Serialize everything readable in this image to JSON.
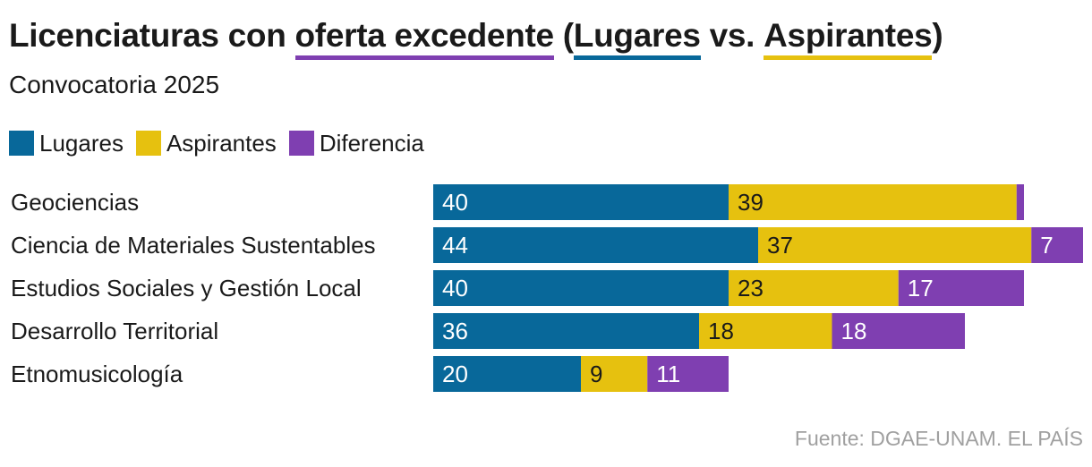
{
  "title": {
    "part1": "Licenciaturas con ",
    "part2": "oferta excedente",
    "part3": " (",
    "part4": "Lugares",
    "part5": " vs. ",
    "part6": "Aspirantes",
    "part7": ")"
  },
  "subtitle": "Convocatoria 2025",
  "legend": [
    {
      "label": "Lugares",
      "color": "#08689a"
    },
    {
      "label": "Aspirantes",
      "color": "#e6c10f"
    },
    {
      "label": "Diferencia",
      "color": "#7f3fb1"
    }
  ],
  "source": "Fuente: DGAE-UNAM. EL PAÍS",
  "chart_data": {
    "type": "bar",
    "orientation": "horizontal",
    "stacked": true,
    "categories": [
      "Geociencias",
      "Ciencia de Materiales Sustentables",
      "Estudios Sociales y Gestión Local",
      "Desarrollo Territorial",
      "Etnomusicología"
    ],
    "series": [
      {
        "name": "Lugares",
        "color": "#08689a",
        "label_color": "#ffffff",
        "values": [
          40,
          44,
          40,
          36,
          20
        ],
        "labels": [
          "40",
          "44",
          "40",
          "36",
          "20"
        ]
      },
      {
        "name": "Aspirantes",
        "color": "#e6c10f",
        "label_color": "#1a1a1a",
        "values": [
          39,
          37,
          23,
          18,
          9
        ],
        "labels": [
          "39",
          "37",
          "23",
          "18",
          "9"
        ]
      },
      {
        "name": "Diferencia",
        "color": "#7f3fb1",
        "label_color": "#ffffff",
        "values": [
          1,
          7,
          17,
          18,
          11
        ],
        "labels": [
          "",
          "7",
          "17",
          "18",
          "11"
        ]
      }
    ],
    "xlim": [
      0,
      88
    ],
    "grid": false,
    "legend_position": "top-left"
  }
}
